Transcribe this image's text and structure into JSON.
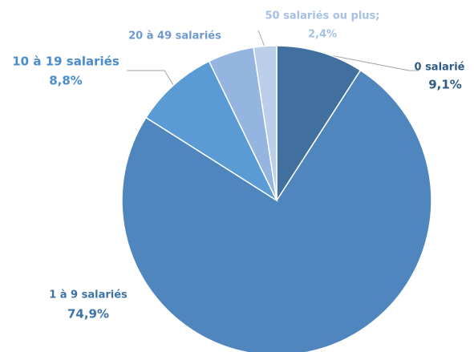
{
  "chart_data": {
    "type": "pie",
    "categories": [
      "0 salarié",
      "1 à 9 salariés",
      "10 à 19 salariés",
      "20 à 49 salariés",
      "50 salariés ou plus;"
    ],
    "values": [
      9.1,
      74.9,
      8.8,
      4.8,
      2.4
    ],
    "value_labels": [
      "9,1%",
      "74,9%",
      "8,8%",
      null,
      "2,4%"
    ],
    "colors": [
      "#41709f",
      "#4f86be",
      "#5b9bd5",
      "#93b5df",
      "#bccfea"
    ],
    "label_colors": [
      "#2f5b86",
      "#3d73a8",
      "#4a8ccc",
      "#6f9ad0",
      "#a6c0e4"
    ]
  }
}
